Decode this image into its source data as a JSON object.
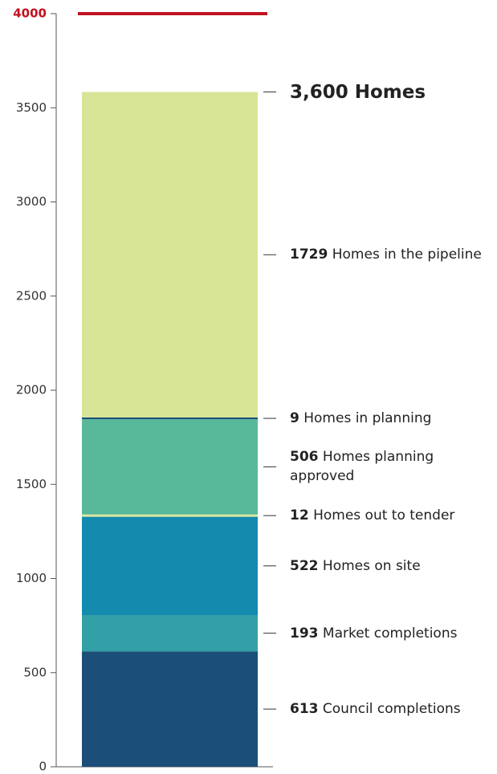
{
  "chart_data": {
    "type": "stacked_bar",
    "categories": [
      null
    ],
    "series": [
      {
        "name": "Council completions",
        "color": "#1b4f79",
        "values": [
          613
        ]
      },
      {
        "name": "Market completions",
        "color": "#339fa6",
        "values": [
          193
        ]
      },
      {
        "name": "Homes on site",
        "color": "#148aaf",
        "values": [
          522
        ]
      },
      {
        "name": "Homes out to tender",
        "color": "#dde99a",
        "values": [
          12
        ]
      },
      {
        "name": "Homes planning approved",
        "color": "#58b89a",
        "values": [
          506
        ]
      },
      {
        "name": "Homes in planning",
        "color": "#1b4f79",
        "values": [
          9
        ]
      },
      {
        "name": "Homes in the pipeline",
        "color": "#d8e597",
        "values": [
          1729
        ]
      }
    ],
    "annotation": "3,600 Homes",
    "target": {
      "value": 4000,
      "color": "#c0121f"
    },
    "ylim": [
      0,
      4000
    ],
    "yticks": [
      0,
      500,
      1000,
      1500,
      2000,
      2500,
      3000,
      3500,
      4000
    ]
  }
}
